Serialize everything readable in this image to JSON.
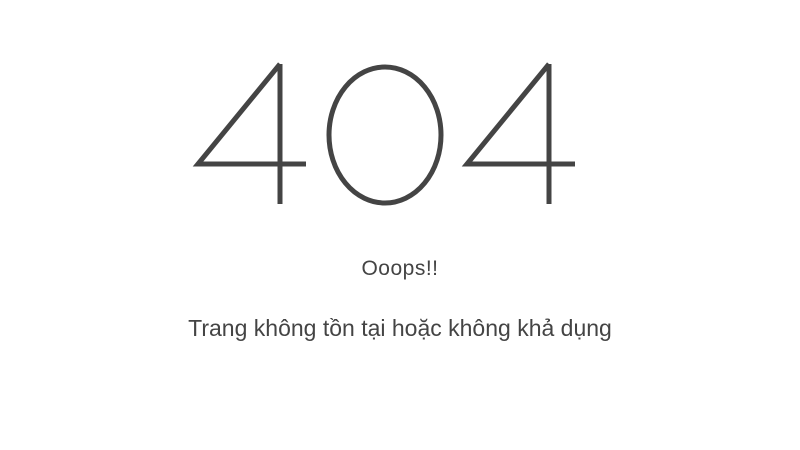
{
  "error_code": "404",
  "heading": "Ooops!!",
  "message": "Trang không tồn tại hoặc không khả dụng",
  "colors": {
    "background": "#ffffff",
    "text": "#444444",
    "digits": "#444444"
  }
}
